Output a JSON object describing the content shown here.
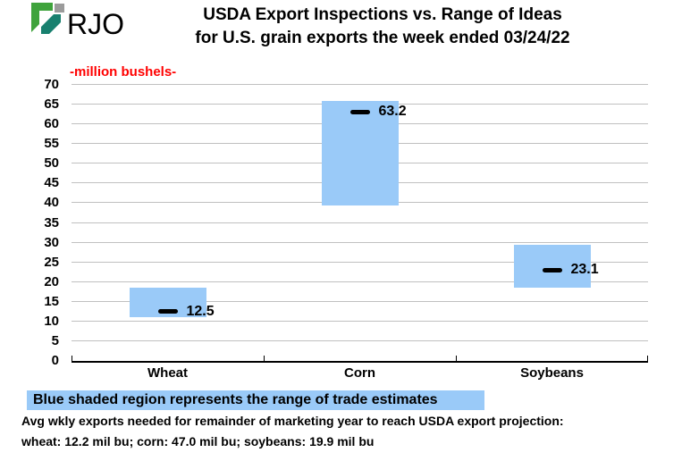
{
  "logo": {
    "text": "RJO",
    "green": "#3FA33C",
    "teal": "#18806F",
    "gray": "#9B9B9B"
  },
  "title": {
    "line1": "USDA Export Inspections vs. Range of Ideas",
    "line2": "for U.S. grain exports the week ended 03/24/22"
  },
  "chart_data": {
    "type": "bar",
    "subtype": "floating range bars with single-value dash markers",
    "title": "USDA Export Inspections vs. Range of Ideas for U.S. grain exports the week ended 03/24/22",
    "unit_label": "-million bushels-",
    "categories": [
      "Wheat",
      "Corn",
      "Soybeans"
    ],
    "series": [
      {
        "name": "Range of trade estimates (blue shaded region)",
        "low": [
          11.0,
          39.5,
          18.5
        ],
        "high": [
          18.5,
          66.0,
          29.5
        ]
      },
      {
        "name": "USDA export inspections (black dash)",
        "values": [
          12.5,
          63.2,
          23.1
        ]
      }
    ],
    "value_labels": [
      "12.5",
      "63.2",
      "23.1"
    ],
    "ylim": [
      0,
      70
    ],
    "ytick_step": 5,
    "grid": true,
    "legend_position": "note below chart",
    "bar_color": "#9ACAF8",
    "marker_color": "#000000",
    "grid_color": "#C0C0C0",
    "axis_color": "#000000",
    "unit_label_color": "#FF0000"
  },
  "footnote": {
    "legend_band": "Blue shaded region represents the range of trade estimates",
    "line1": "Avg wkly exports needed for remainder of marketing year to reach USDA export projection:",
    "line2": "wheat: 12.2 mil bu; corn: 47.0 mil bu; soybeans: 19.9 mil bu"
  }
}
